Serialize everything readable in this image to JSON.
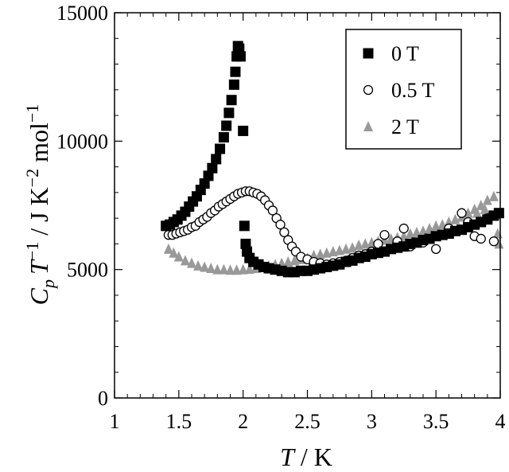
{
  "chart_data": {
    "type": "scatter",
    "title": "",
    "xlabel": {
      "italic": "T",
      "rest": " / K"
    },
    "ylabel": {
      "main": "C",
      "sub": "p",
      "t": "T",
      "sup1": "−1",
      "mid": " / J K",
      "sup2": "−2",
      "mol": " mol",
      "sup3": "−1"
    },
    "xlim": [
      1,
      4
    ],
    "ylim": [
      0,
      15000
    ],
    "xticks": [
      1,
      1.5,
      2,
      2.5,
      3,
      3.5,
      4
    ],
    "xtick_labels": [
      "1",
      "1.5",
      "2",
      "2.5",
      "3",
      "3.5",
      "4"
    ],
    "yticks": [
      0,
      5000,
      10000,
      15000
    ],
    "ytick_labels": [
      "0",
      "5000",
      "10000",
      "15000"
    ],
    "grid": false,
    "legend_position": "top-right",
    "series": [
      {
        "name": "0 T",
        "marker": "filled-square",
        "color": "#000000",
        "points": [
          [
            1.4,
            6700
          ],
          [
            1.43,
            6750
          ],
          [
            1.46,
            6850
          ],
          [
            1.49,
            6950
          ],
          [
            1.52,
            7100
          ],
          [
            1.55,
            7250
          ],
          [
            1.58,
            7450
          ],
          [
            1.61,
            7650
          ],
          [
            1.64,
            7850
          ],
          [
            1.67,
            8100
          ],
          [
            1.7,
            8350
          ],
          [
            1.73,
            8650
          ],
          [
            1.76,
            8950
          ],
          [
            1.79,
            9300
          ],
          [
            1.82,
            9700
          ],
          [
            1.85,
            10150
          ],
          [
            1.87,
            10600
          ],
          [
            1.89,
            11100
          ],
          [
            1.91,
            11600
          ],
          [
            1.93,
            12200
          ],
          [
            1.94,
            12700
          ],
          [
            1.95,
            13300
          ],
          [
            1.96,
            13700
          ],
          [
            1.97,
            13600
          ],
          [
            1.98,
            13300
          ],
          [
            2.0,
            10400
          ],
          [
            2.01,
            6700
          ],
          [
            2.02,
            6000
          ],
          [
            2.03,
            5700
          ],
          [
            2.05,
            5450
          ],
          [
            2.08,
            5300
          ],
          [
            2.12,
            5200
          ],
          [
            2.16,
            5100
          ],
          [
            2.2,
            5050
          ],
          [
            2.25,
            5000
          ],
          [
            2.3,
            4950
          ],
          [
            2.35,
            4900
          ],
          [
            2.4,
            4900
          ],
          [
            2.45,
            4950
          ],
          [
            2.5,
            4950
          ],
          [
            2.55,
            5000
          ],
          [
            2.6,
            5050
          ],
          [
            2.65,
            5100
          ],
          [
            2.7,
            5150
          ],
          [
            2.75,
            5200
          ],
          [
            2.8,
            5300
          ],
          [
            2.85,
            5350
          ],
          [
            2.9,
            5450
          ],
          [
            2.95,
            5500
          ],
          [
            3.0,
            5600
          ],
          [
            3.05,
            5650
          ],
          [
            3.1,
            5700
          ],
          [
            3.15,
            5800
          ],
          [
            3.2,
            5850
          ],
          [
            3.25,
            5900
          ],
          [
            3.3,
            6000
          ],
          [
            3.35,
            6050
          ],
          [
            3.4,
            6150
          ],
          [
            3.45,
            6200
          ],
          [
            3.5,
            6300
          ],
          [
            3.55,
            6350
          ],
          [
            3.6,
            6400
          ],
          [
            3.65,
            6500
          ],
          [
            3.7,
            6550
          ],
          [
            3.75,
            6650
          ],
          [
            3.8,
            6750
          ],
          [
            3.85,
            6850
          ],
          [
            3.9,
            6950
          ],
          [
            3.95,
            7100
          ],
          [
            3.99,
            7200
          ]
        ]
      },
      {
        "name": "0.5 T",
        "marker": "open-circle",
        "color": "#000000",
        "points": [
          [
            1.42,
            6350
          ],
          [
            1.45,
            6350
          ],
          [
            1.48,
            6400
          ],
          [
            1.51,
            6450
          ],
          [
            1.54,
            6500
          ],
          [
            1.57,
            6550
          ],
          [
            1.6,
            6650
          ],
          [
            1.63,
            6700
          ],
          [
            1.66,
            6850
          ],
          [
            1.69,
            6950
          ],
          [
            1.72,
            7050
          ],
          [
            1.75,
            7200
          ],
          [
            1.78,
            7300
          ],
          [
            1.81,
            7450
          ],
          [
            1.84,
            7550
          ],
          [
            1.87,
            7650
          ],
          [
            1.9,
            7750
          ],
          [
            1.93,
            7850
          ],
          [
            1.96,
            7950
          ],
          [
            1.99,
            8000
          ],
          [
            2.02,
            8050
          ],
          [
            2.05,
            8050
          ],
          [
            2.08,
            8000
          ],
          [
            2.11,
            7950
          ],
          [
            2.14,
            7850
          ],
          [
            2.17,
            7700
          ],
          [
            2.2,
            7500
          ],
          [
            2.23,
            7300
          ],
          [
            2.26,
            7000
          ],
          [
            2.29,
            6750
          ],
          [
            2.32,
            6450
          ],
          [
            2.35,
            6150
          ],
          [
            2.38,
            5900
          ],
          [
            2.41,
            5700
          ],
          [
            2.45,
            5500
          ],
          [
            2.5,
            5400
          ],
          [
            2.55,
            5300
          ],
          [
            2.6,
            5250
          ],
          [
            2.65,
            5200
          ],
          [
            2.7,
            5250
          ],
          [
            2.75,
            5300
          ],
          [
            2.8,
            5350
          ],
          [
            2.85,
            5450
          ],
          [
            2.9,
            5550
          ],
          [
            2.95,
            5600
          ],
          [
            3.0,
            5700
          ],
          [
            3.05,
            6000
          ],
          [
            3.1,
            6350
          ],
          [
            3.15,
            5800
          ],
          [
            3.2,
            6100
          ],
          [
            3.25,
            6600
          ],
          [
            3.3,
            5900
          ],
          [
            3.4,
            6050
          ],
          [
            3.5,
            5800
          ],
          [
            3.55,
            6350
          ],
          [
            3.6,
            6600
          ],
          [
            3.65,
            6500
          ],
          [
            3.7,
            7200
          ],
          [
            3.75,
            6850
          ],
          [
            3.8,
            6300
          ],
          [
            3.85,
            6200
          ],
          [
            3.9,
            7000
          ],
          [
            3.95,
            6100
          ]
        ]
      },
      {
        "name": "2 T",
        "marker": "filled-triangle",
        "color": "#999999",
        "points": [
          [
            1.42,
            5800
          ],
          [
            1.46,
            5650
          ],
          [
            1.5,
            5500
          ],
          [
            1.55,
            5350
          ],
          [
            1.6,
            5250
          ],
          [
            1.65,
            5150
          ],
          [
            1.7,
            5100
          ],
          [
            1.75,
            5050
          ],
          [
            1.8,
            5000
          ],
          [
            1.85,
            5000
          ],
          [
            1.9,
            4980
          ],
          [
            1.95,
            4980
          ],
          [
            2.0,
            5000
          ],
          [
            2.05,
            5020
          ],
          [
            2.1,
            5050
          ],
          [
            2.15,
            5100
          ],
          [
            2.2,
            5150
          ],
          [
            2.25,
            5200
          ],
          [
            2.3,
            5250
          ],
          [
            2.35,
            5300
          ],
          [
            2.4,
            5350
          ],
          [
            2.45,
            5400
          ],
          [
            2.5,
            5450
          ],
          [
            2.55,
            5550
          ],
          [
            2.6,
            5600
          ],
          [
            2.65,
            5650
          ],
          [
            2.7,
            5700
          ],
          [
            2.75,
            5750
          ],
          [
            2.8,
            5800
          ],
          [
            2.85,
            5850
          ],
          [
            2.9,
            5950
          ],
          [
            2.95,
            6000
          ],
          [
            3.0,
            6050
          ],
          [
            3.05,
            6100
          ],
          [
            3.1,
            6150
          ],
          [
            3.15,
            6200
          ],
          [
            3.2,
            6250
          ],
          [
            3.25,
            6300
          ],
          [
            3.3,
            6400
          ],
          [
            3.35,
            6450
          ],
          [
            3.4,
            6500
          ],
          [
            3.45,
            6600
          ],
          [
            3.5,
            6700
          ],
          [
            3.55,
            6750
          ],
          [
            3.6,
            6850
          ],
          [
            3.65,
            6950
          ],
          [
            3.7,
            7050
          ],
          [
            3.75,
            7200
          ],
          [
            3.8,
            7350
          ],
          [
            3.85,
            7500
          ],
          [
            3.9,
            7700
          ],
          [
            3.95,
            7850
          ],
          [
            3.99,
            6000
          ],
          [
            3.98,
            6400
          ],
          [
            3.97,
            7200
          ],
          [
            3.92,
            7100
          ],
          [
            3.88,
            7350
          ],
          [
            3.82,
            7200
          ]
        ]
      }
    ]
  }
}
